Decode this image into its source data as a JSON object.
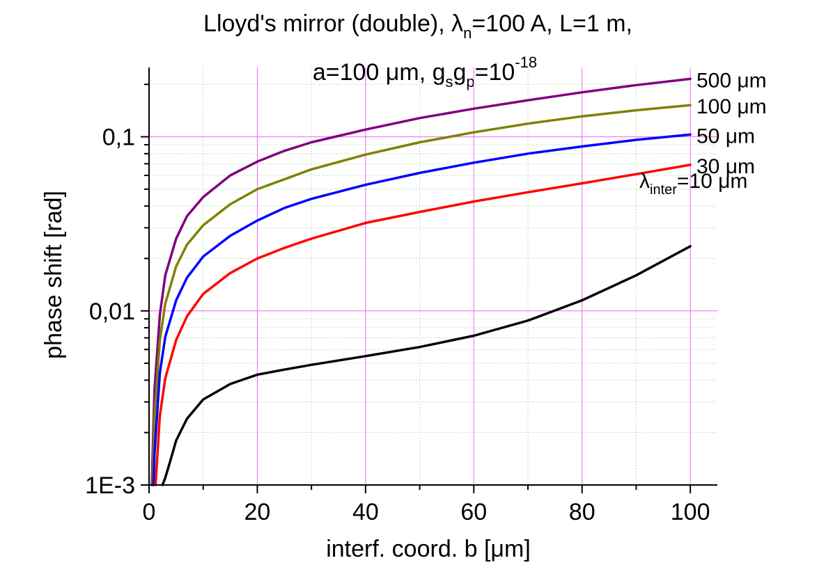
{
  "chart_data": {
    "type": "line",
    "title": {
      "line1": {
        "pre": "Lloyd's mirror (double), ",
        "lambda": "λ",
        "lambda_sub": "n",
        "post": "=100 A, L=1 m,"
      },
      "line2": {
        "pre": "a=100 μm, g",
        "sub1": "s",
        "mid": "g",
        "sub2": "p",
        "post": "=10",
        "sup": "-18"
      }
    },
    "xlabel": "interf. coord. b [μm]",
    "ylabel": "phase shift [rad]",
    "xlim": [
      0,
      105
    ],
    "ylim": [
      0.001,
      0.25
    ],
    "yscale": "log",
    "x_ticks": [
      "0",
      "20",
      "40",
      "60",
      "80",
      "100"
    ],
    "x_tick_values": [
      0,
      20,
      40,
      60,
      80,
      100
    ],
    "y_ticks": [
      "1E-3",
      "0,01",
      "0,1"
    ],
    "y_tick_values": [
      0.001,
      0.01,
      0.1
    ],
    "grid": "major magenta, minor dotted green",
    "series": [
      {
        "name": "500 μm",
        "color": "#800080",
        "x": [
          0.5,
          1,
          2,
          3,
          5,
          7,
          10,
          15,
          20,
          25,
          30,
          40,
          50,
          60,
          70,
          80,
          90,
          100
        ],
        "y": [
          0.001,
          0.0035,
          0.0095,
          0.016,
          0.026,
          0.035,
          0.045,
          0.06,
          0.072,
          0.083,
          0.093,
          0.11,
          0.128,
          0.145,
          0.162,
          0.18,
          0.198,
          0.215
        ]
      },
      {
        "name": "100 μm",
        "color": "#808000",
        "x": [
          0.6,
          1,
          2,
          3,
          5,
          7,
          10,
          15,
          20,
          25,
          30,
          40,
          50,
          60,
          70,
          80,
          90,
          100
        ],
        "y": [
          0.001,
          0.0025,
          0.0068,
          0.011,
          0.018,
          0.024,
          0.031,
          0.041,
          0.05,
          0.057,
          0.065,
          0.079,
          0.093,
          0.106,
          0.119,
          0.131,
          0.142,
          0.152
        ]
      },
      {
        "name": "50 μm",
        "color": "#0000ff",
        "x": [
          0.8,
          1,
          2,
          3,
          5,
          7,
          10,
          15,
          20,
          25,
          30,
          40,
          50,
          60,
          70,
          80,
          90,
          100
        ],
        "y": [
          0.001,
          0.0015,
          0.0044,
          0.0071,
          0.0115,
          0.0155,
          0.0205,
          0.027,
          0.033,
          0.039,
          0.044,
          0.053,
          0.062,
          0.071,
          0.08,
          0.088,
          0.096,
          0.103
        ]
      },
      {
        "name": "30 μm",
        "color": "#ff0000",
        "x": [
          1.2,
          2,
          3,
          5,
          7,
          10,
          15,
          20,
          25,
          30,
          40,
          50,
          60,
          70,
          80,
          90,
          100
        ],
        "y": [
          0.001,
          0.0025,
          0.0041,
          0.0068,
          0.0093,
          0.0125,
          0.0165,
          0.02,
          0.023,
          0.026,
          0.032,
          0.037,
          0.0425,
          0.048,
          0.054,
          0.061,
          0.069
        ]
      },
      {
        "name": "λinter=10 μm",
        "color": "#000000",
        "x": [
          2.5,
          3,
          4,
          5,
          7,
          10,
          15,
          20,
          25,
          30,
          40,
          50,
          60,
          70,
          80,
          90,
          100
        ],
        "y": [
          0.001,
          0.0011,
          0.0014,
          0.0018,
          0.0024,
          0.0031,
          0.0038,
          0.0043,
          0.0046,
          0.0049,
          0.0055,
          0.0062,
          0.0072,
          0.0088,
          0.0115,
          0.016,
          0.0235
        ]
      }
    ],
    "labels": [
      {
        "series": 0,
        "text": "500 μm"
      },
      {
        "series": 1,
        "text": "100 μm"
      },
      {
        "series": 2,
        "text": "50 μm"
      },
      {
        "series": 3,
        "text": "30 μm"
      },
      {
        "series": 4,
        "pre": "λ",
        "sub": "inter",
        "post": "=10 μm"
      }
    ]
  }
}
